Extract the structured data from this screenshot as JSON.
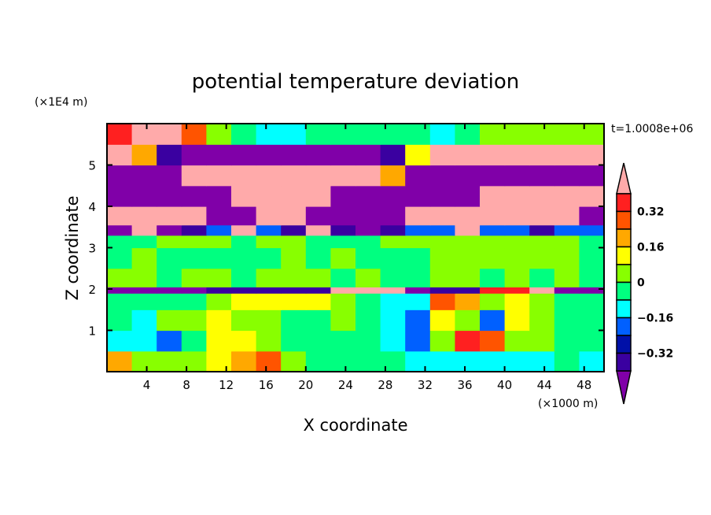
{
  "chart_data": {
    "type": "heatmap",
    "title": "potential temperature deviation",
    "xlabel": "X coordinate",
    "ylabel": "Z coordinate",
    "x_unit": "(×1000 m)",
    "y_unit": "(×1E4 m)",
    "time_label": "t=1.0008e+06",
    "xlim": [
      0,
      50
    ],
    "ylim": [
      0,
      6
    ],
    "x_ticks": [
      4,
      8,
      12,
      16,
      20,
      24,
      28,
      32,
      36,
      40,
      44,
      48
    ],
    "y_ticks": [
      1,
      2,
      3,
      4,
      5
    ],
    "x_tick_labels": [
      "4",
      "8",
      "12",
      "16",
      "20",
      "24",
      "28",
      "32",
      "36",
      "40",
      "44",
      "48"
    ],
    "y_tick_labels": [
      "1",
      "2",
      "3",
      "4",
      "5"
    ],
    "grid": false,
    "levels": [
      -0.4,
      -0.32,
      -0.24,
      -0.16,
      -0.08,
      0,
      0.08,
      0.16,
      0.24,
      0.32,
      0.4
    ],
    "colors": [
      "#8000a8",
      "#3a00a0",
      "#0010a8",
      "#0060ff",
      "#00ffff",
      "#00ff80",
      "#88ff00",
      "#ffff00",
      "#ffa800",
      "#ff5400",
      "#ff2020",
      "#ffaaaa"
    ],
    "colorbar": {
      "tick_values": [
        0.32,
        0.16,
        0,
        -0.16,
        -0.32
      ],
      "tick_labels": [
        "0.32",
        "0.16",
        "0",
        "−0.16",
        "−0.32"
      ],
      "extend": "both"
    },
    "x_centers": [
      1.25,
      3.75,
      6.25,
      8.75,
      11.25,
      13.75,
      16.25,
      18.75,
      21.25,
      23.75,
      26.25,
      28.75,
      31.25,
      33.75,
      36.25,
      38.75,
      41.25,
      43.75,
      46.25,
      48.75
    ],
    "z_edges": [
      0,
      0.5,
      1.0,
      1.5,
      1.9,
      2.05,
      2.5,
      3.0,
      3.3,
      3.55,
      4.0,
      4.5,
      5.0,
      5.5,
      6.0
    ],
    "values": [
      [
        0.2,
        0.04,
        0.04,
        0.04,
        0.12,
        0.2,
        0.28,
        0.04,
        -0.04,
        -0.04,
        -0.04,
        -0.04,
        -0.12,
        -0.12,
        -0.12,
        -0.12,
        -0.12,
        -0.12,
        -0.04,
        -0.12
      ],
      [
        -0.12,
        -0.12,
        -0.2,
        -0.04,
        0.12,
        0.12,
        0.04,
        -0.04,
        -0.04,
        -0.04,
        -0.04,
        -0.12,
        -0.2,
        0.04,
        0.36,
        0.28,
        0.04,
        0.04,
        -0.04,
        -0.04
      ],
      [
        -0.04,
        -0.12,
        0.04,
        0.04,
        0.12,
        0.04,
        0.04,
        -0.04,
        -0.04,
        0.04,
        -0.04,
        -0.12,
        -0.2,
        0.12,
        0.04,
        -0.2,
        0.12,
        0.04,
        -0.04,
        -0.04
      ],
      [
        -0.04,
        -0.04,
        -0.04,
        -0.04,
        0.04,
        0.12,
        0.12,
        0.12,
        0.12,
        0.04,
        -0.04,
        -0.12,
        -0.12,
        0.28,
        0.2,
        0.04,
        0.12,
        0.04,
        -0.04,
        -0.04
      ],
      [
        -0.45,
        -0.45,
        -0.45,
        -0.45,
        -0.36,
        -0.36,
        -0.36,
        -0.36,
        -0.36,
        0.45,
        0.45,
        0.45,
        -0.45,
        -0.36,
        -0.36,
        0.36,
        0.36,
        0.45,
        -0.45,
        -0.45
      ],
      [
        0.04,
        0.04,
        -0.04,
        0.04,
        0.04,
        -0.04,
        0.04,
        0.04,
        0.04,
        -0.04,
        0.04,
        -0.04,
        -0.04,
        0.04,
        0.04,
        -0.04,
        0.04,
        -0.04,
        0.04,
        -0.04
      ],
      [
        -0.04,
        0.04,
        -0.04,
        -0.04,
        -0.04,
        -0.04,
        -0.04,
        0.04,
        -0.04,
        0.04,
        -0.04,
        -0.04,
        -0.04,
        0.04,
        0.04,
        0.04,
        0.04,
        0.04,
        0.04,
        -0.04
      ],
      [
        -0.04,
        -0.04,
        0.04,
        0.04,
        0.04,
        -0.04,
        0.04,
        0.04,
        -0.04,
        -0.04,
        -0.04,
        0.04,
        0.04,
        0.04,
        0.04,
        0.04,
        0.04,
        0.04,
        0.04,
        -0.04
      ],
      [
        -0.45,
        0.45,
        -0.45,
        -0.36,
        -0.2,
        0.45,
        -0.2,
        -0.36,
        0.45,
        -0.36,
        -0.45,
        -0.36,
        -0.2,
        -0.2,
        0.45,
        -0.2,
        -0.2,
        -0.36,
        -0.2,
        -0.2
      ],
      [
        0.45,
        0.45,
        0.45,
        0.45,
        -0.45,
        -0.45,
        0.45,
        0.45,
        -0.45,
        -0.45,
        -0.45,
        -0.45,
        0.45,
        0.45,
        0.45,
        0.45,
        0.45,
        0.45,
        0.45,
        -0.45
      ],
      [
        -0.45,
        -0.45,
        -0.45,
        -0.45,
        -0.45,
        0.45,
        0.45,
        0.45,
        0.45,
        -0.45,
        -0.45,
        -0.45,
        -0.45,
        -0.45,
        -0.45,
        0.45,
        0.45,
        0.45,
        0.45,
        0.45
      ],
      [
        -0.45,
        -0.45,
        -0.45,
        0.45,
        0.45,
        0.45,
        0.45,
        0.45,
        0.45,
        0.45,
        0.45,
        0.2,
        -0.45,
        -0.45,
        -0.45,
        -0.45,
        -0.45,
        -0.45,
        -0.45,
        -0.45
      ],
      [
        0.45,
        0.2,
        -0.36,
        -0.45,
        -0.45,
        -0.45,
        -0.45,
        -0.45,
        -0.45,
        -0.45,
        -0.45,
        -0.36,
        0.12,
        0.45,
        0.45,
        0.45,
        0.45,
        0.45,
        0.45,
        0.45
      ],
      [
        0.36,
        0.45,
        0.45,
        0.28,
        0.04,
        -0.04,
        -0.12,
        -0.12,
        -0.04,
        -0.04,
        -0.04,
        -0.04,
        -0.04,
        -0.12,
        -0.04,
        0.04,
        0.04,
        0.04,
        0.04,
        0.04
      ]
    ]
  }
}
